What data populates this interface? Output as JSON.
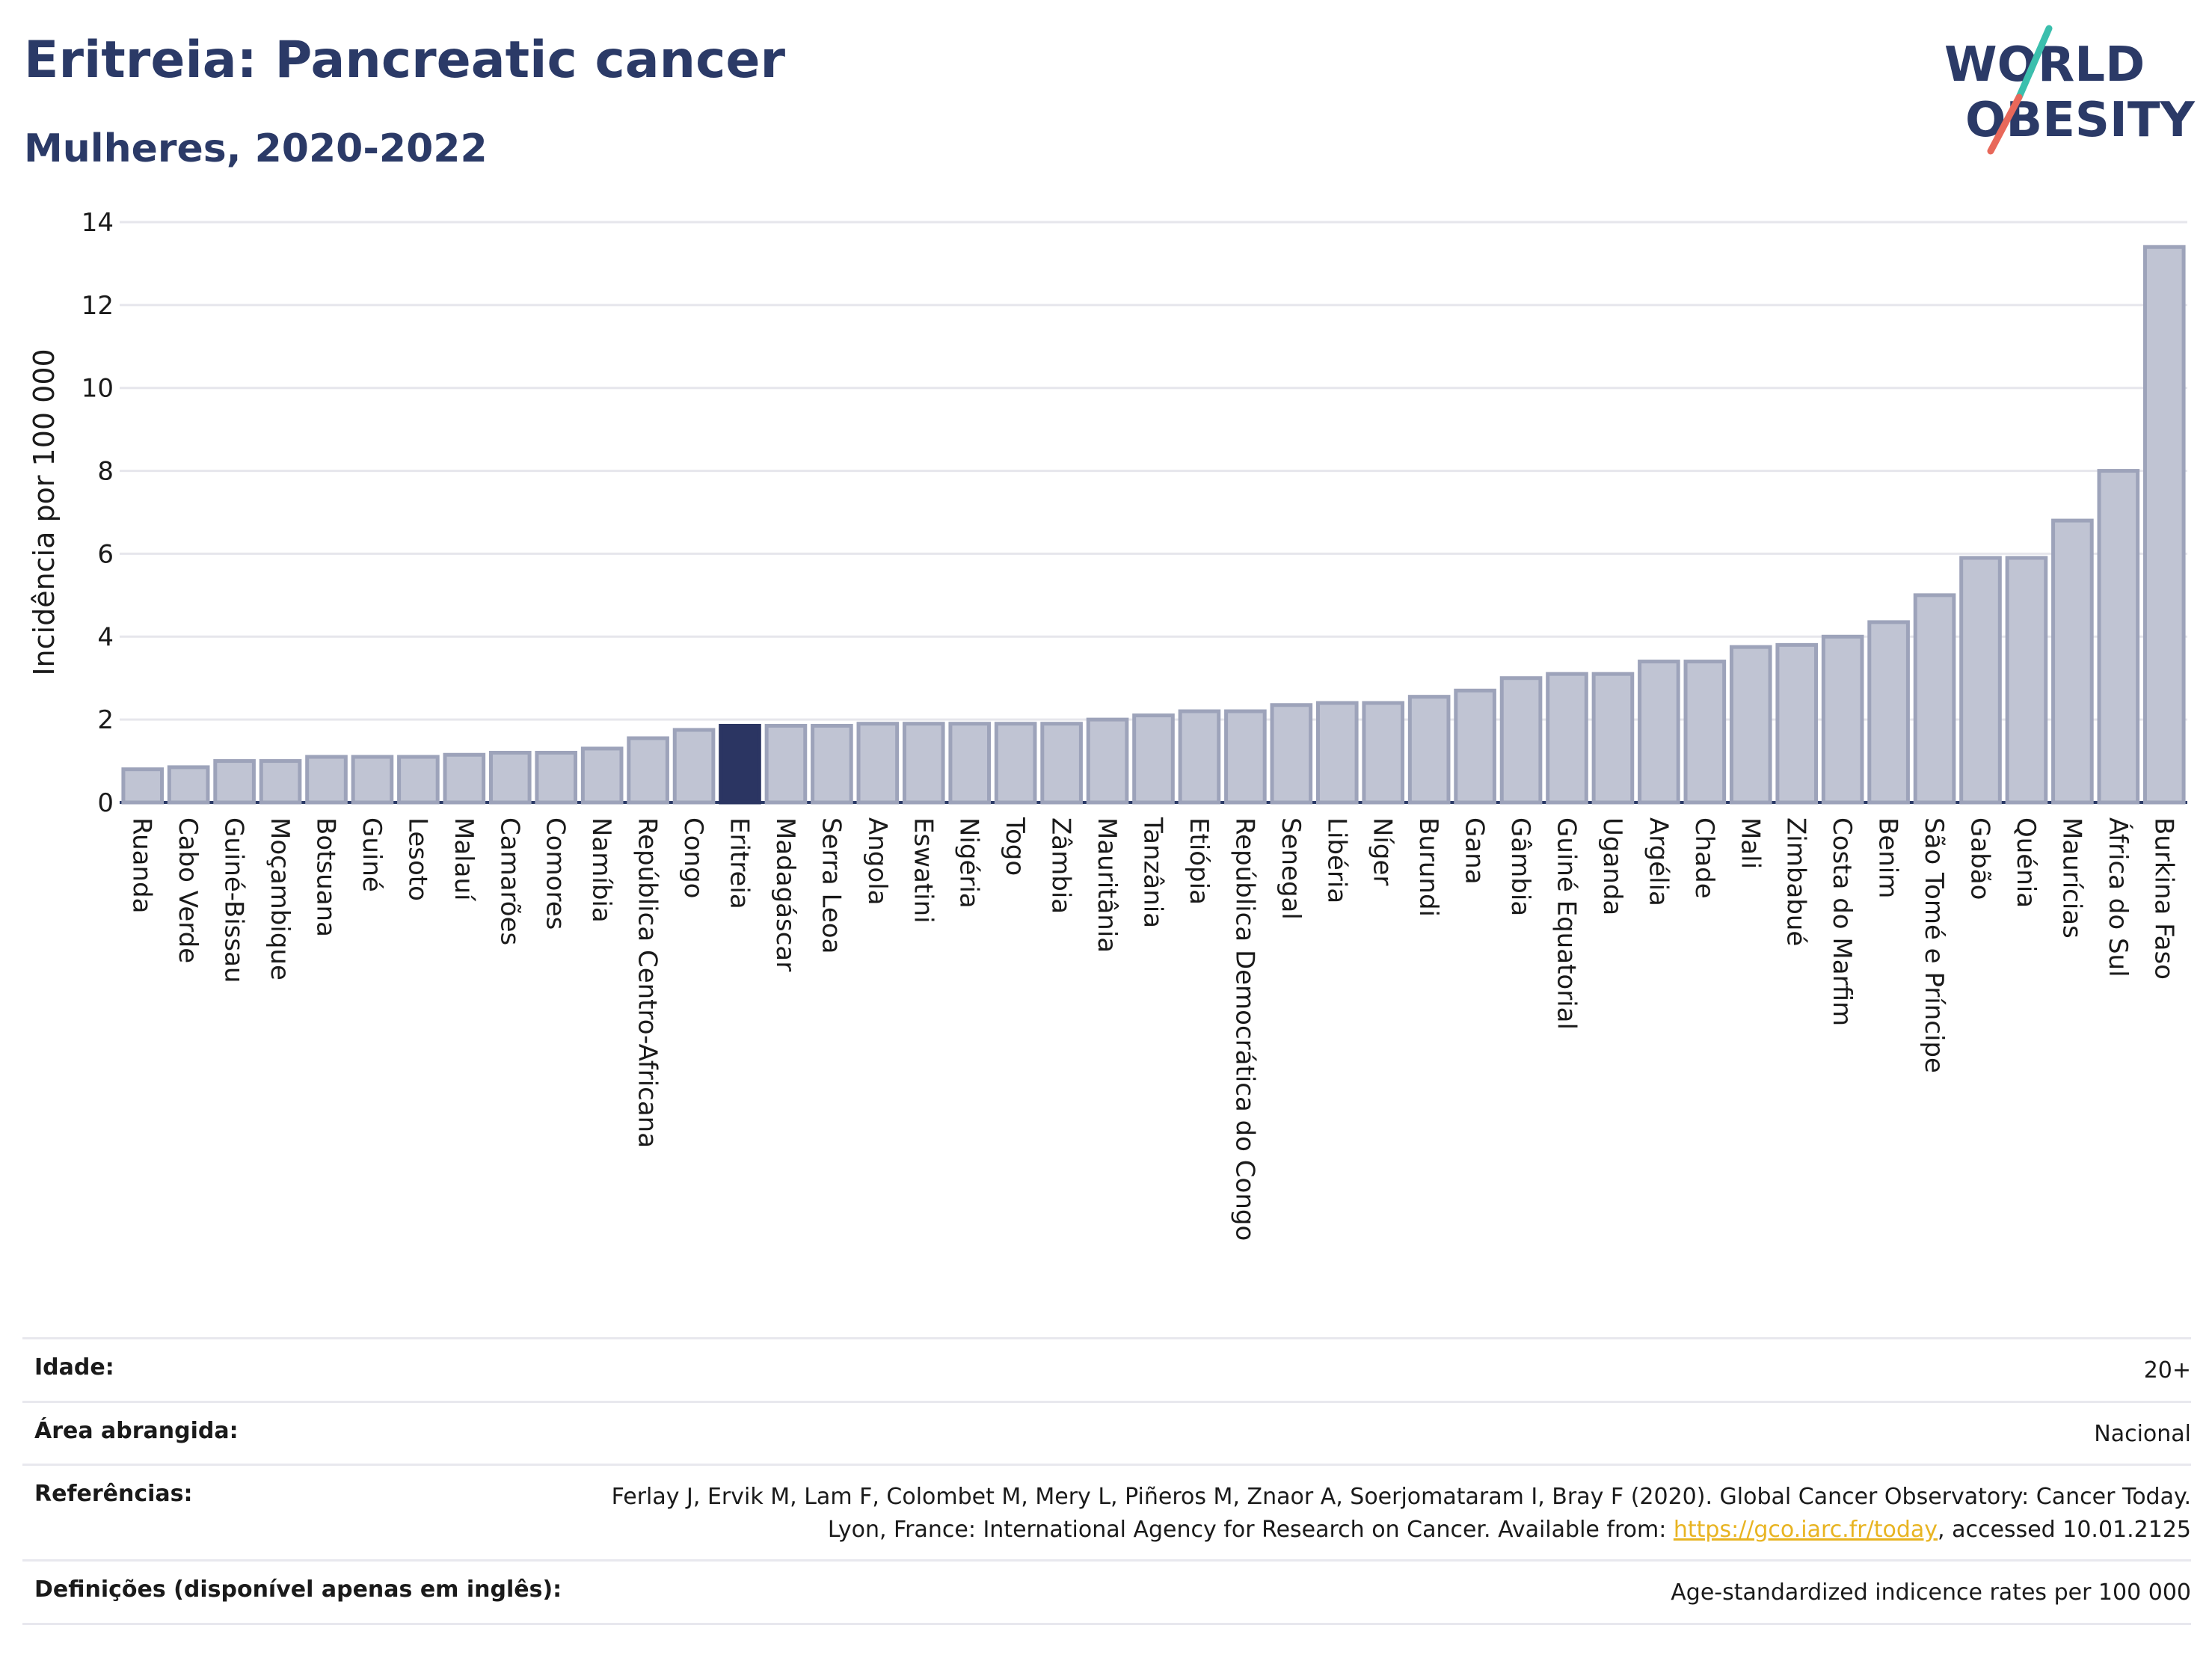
{
  "header": {
    "title": "Eritreia: Pancreatic cancer",
    "subtitle": "Mulheres, 2020-2022"
  },
  "logo": {
    "line1": "WORLD",
    "line2": "OBESITY"
  },
  "chart_data": {
    "type": "bar",
    "title": "Eritreia: Pancreatic cancer",
    "subtitle": "Mulheres, 2020-2022",
    "ylabel": "Incidência por 100 000",
    "xlabel": "",
    "ylim": [
      0,
      14
    ],
    "yticks": [
      0,
      2,
      4,
      6,
      8,
      10,
      12,
      14
    ],
    "grid": true,
    "highlight": "Eritreia",
    "colors": {
      "bar": "#c0c4d3",
      "bar_edge": "#9da3ba",
      "highlight": "#2b3562"
    },
    "categories": [
      "Ruanda",
      "Cabo Verde",
      "Guiné-Bissau",
      "Moçambique",
      "Botsuana",
      "Guiné",
      "Lesoto",
      "Malauí",
      "Camarões",
      "Comores",
      "Namíbia",
      "República Centro-Africana",
      "Congo",
      "Eritreia",
      "Madagáscar",
      "Serra Leoa",
      "Angola",
      "Eswatini",
      "Nigéria",
      "Togo",
      "Zâmbia",
      "Mauritânia",
      "Tanzânia",
      "Etiópia",
      "República Democrática do Congo",
      "Senegal",
      "Libéria",
      "Níger",
      "Burundi",
      "Gana",
      "Gâmbia",
      "Guiné Equatorial",
      "Uganda",
      "Argélia",
      "Chade",
      "Mali",
      "Zimbabué",
      "Costa do Marfim",
      "Benim",
      "São Tomé e Príncipe",
      "Gabão",
      "Quénia",
      "Maurícias",
      "África do Sul",
      "Burkina Faso"
    ],
    "values": [
      0.8,
      0.85,
      1.0,
      1.0,
      1.1,
      1.1,
      1.1,
      1.15,
      1.2,
      1.2,
      1.3,
      1.55,
      1.75,
      1.85,
      1.85,
      1.85,
      1.9,
      1.9,
      1.9,
      1.9,
      1.9,
      2.0,
      2.1,
      2.2,
      2.2,
      2.35,
      2.4,
      2.4,
      2.55,
      2.7,
      3.0,
      3.1,
      3.1,
      3.4,
      3.4,
      3.75,
      3.8,
      4.0,
      4.35,
      5.0,
      5.9,
      5.9,
      6.8,
      8.0,
      13.4
    ]
  },
  "meta": [
    {
      "label": "Idade:",
      "value": "20+"
    },
    {
      "label": "Área abrangida:",
      "value": "Nacional"
    },
    {
      "label": "Referências:",
      "value_pre": "Ferlay J, Ervik M, Lam F, Colombet M, Mery L, Piñeros M, Znaor A, Soerjomataram I, Bray F (2020). Global Cancer Observatory: Cancer Today. Lyon, France: International Agency for Research on Cancer. Available from: ",
      "link": "https://gco.iarc.fr/today",
      "value_post": ", accessed 10.01.2125"
    },
    {
      "label": "Definições (disponível apenas em inglês):",
      "value": "Age-standardized indicence rates per 100 000"
    }
  ]
}
